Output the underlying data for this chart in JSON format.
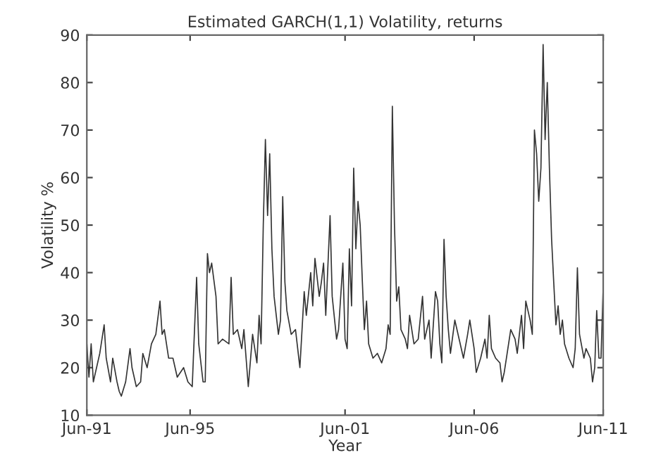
{
  "chart_data": {
    "type": "line",
    "title": "Estimated GARCH(1,1) Volatility, returns",
    "xlabel": "Year",
    "ylabel": "Volatility %",
    "xlim": [
      "1991-06",
      "2011-06"
    ],
    "ylim": [
      10,
      90
    ],
    "xticks": [
      {
        "value": "1991-06",
        "label": "Jun-91"
      },
      {
        "value": "1995-06",
        "label": "Jun-95"
      },
      {
        "value": "2001-06",
        "label": "Jun-01"
      },
      {
        "value": "2006-06",
        "label": "Jun-06"
      },
      {
        "value": "2011-06",
        "label": "Jun-11"
      }
    ],
    "yticks": [
      10,
      20,
      30,
      40,
      50,
      60,
      70,
      80,
      90
    ],
    "grid": false,
    "legend": false,
    "marker": "none",
    "line_style": "solid",
    "series": [
      {
        "color": "#333333",
        "x": [
          "1991-06",
          "1991-07",
          "1991-08",
          "1991-09",
          "1991-12",
          "1992-01",
          "1992-02",
          "1992-03",
          "1992-05",
          "1992-06",
          "1992-08",
          "1992-09",
          "1992-10",
          "1992-12",
          "1993-02",
          "1993-03",
          "1993-05",
          "1993-07",
          "1993-08",
          "1993-10",
          "1993-12",
          "1994-02",
          "1994-04",
          "1994-05",
          "1994-06",
          "1994-08",
          "1994-10",
          "1994-12",
          "1995-03",
          "1995-05",
          "1995-07",
          "1995-09",
          "1995-10",
          "1995-12",
          "1996-01",
          "1996-02",
          "1996-03",
          "1996-04",
          "1996-06",
          "1996-07",
          "1996-09",
          "1996-12",
          "1997-01",
          "1997-02",
          "1997-04",
          "1997-06",
          "1997-07",
          "1997-09",
          "1997-11",
          "1998-01",
          "1998-02",
          "1998-03",
          "1998-04",
          "1998-05",
          "1998-06",
          "1998-07",
          "1998-08",
          "1998-09",
          "1998-11",
          "1998-12",
          "1999-01",
          "1999-02",
          "1999-03",
          "1999-05",
          "1999-07",
          "1999-09",
          "1999-11",
          "1999-12",
          "2000-02",
          "2000-03",
          "2000-04",
          "2000-06",
          "2000-07",
          "2000-08",
          "2000-09",
          "2000-11",
          "2000-12",
          "2001-02",
          "2001-03",
          "2001-05",
          "2001-06",
          "2001-07",
          "2001-08",
          "2001-09",
          "2001-10",
          "2001-11",
          "2001-12",
          "2002-01",
          "2002-02",
          "2002-03",
          "2002-04",
          "2002-05",
          "2002-07",
          "2002-09",
          "2002-11",
          "2003-01",
          "2003-02",
          "2003-03",
          "2003-04",
          "2003-05",
          "2003-06",
          "2003-07",
          "2003-08",
          "2003-10",
          "2003-11",
          "2003-12",
          "2004-02",
          "2004-04",
          "2004-06",
          "2004-07",
          "2004-09",
          "2004-10",
          "2004-12",
          "2005-01",
          "2005-02",
          "2005-03",
          "2005-04",
          "2005-05",
          "2005-06",
          "2005-07",
          "2005-09",
          "2005-11",
          "2006-01",
          "2006-03",
          "2006-04",
          "2006-06",
          "2006-07",
          "2006-09",
          "2006-11",
          "2006-12",
          "2007-01",
          "2007-02",
          "2007-04",
          "2007-06",
          "2007-07",
          "2007-08",
          "2007-09",
          "2007-11",
          "2008-01",
          "2008-02",
          "2008-04",
          "2008-05",
          "2008-06",
          "2008-08",
          "2008-09",
          "2008-10",
          "2008-11",
          "2008-12",
          "2009-01",
          "2009-02",
          "2009-03",
          "2009-04",
          "2009-05",
          "2009-06",
          "2009-07",
          "2009-08",
          "2009-09",
          "2009-10",
          "2009-11",
          "2009-12",
          "2010-02",
          "2010-04",
          "2010-05",
          "2010-06",
          "2010-07",
          "2010-09",
          "2010-10",
          "2010-12",
          "2011-01",
          "2011-02",
          "2011-03",
          "2011-04",
          "2011-05",
          "2011-06"
        ],
        "values": [
          25,
          18,
          25,
          17,
          23,
          26,
          29,
          22,
          17,
          22,
          17,
          15,
          14,
          17,
          24,
          20,
          16,
          17,
          23,
          20,
          25,
          27,
          34,
          27,
          28,
          22,
          22,
          18,
          20,
          17,
          16,
          39,
          25,
          17,
          17,
          44,
          40,
          42,
          35,
          25,
          26,
          25,
          39,
          27,
          28,
          24,
          28,
          16,
          27,
          21,
          31,
          25,
          50,
          68,
          52,
          65,
          45,
          35,
          27,
          30,
          56,
          38,
          32,
          27,
          28,
          20,
          36,
          31,
          40,
          33,
          43,
          35,
          38,
          42,
          31,
          52,
          35,
          26,
          28,
          42,
          26,
          24,
          45,
          33,
          62,
          45,
          55,
          50,
          38,
          28,
          34,
          25,
          22,
          23,
          21,
          24,
          29,
          27,
          75,
          50,
          34,
          37,
          28,
          26,
          24,
          31,
          25,
          26,
          35,
          26,
          30,
          22,
          36,
          34,
          25,
          21,
          47,
          35,
          28,
          23,
          30,
          26,
          22,
          27,
          30,
          24,
          19,
          22,
          26,
          22,
          31,
          24,
          22,
          21,
          17,
          19,
          22,
          28,
          26,
          23,
          31,
          24,
          34,
          30,
          27,
          70,
          65,
          55,
          62,
          88,
          68,
          80,
          62,
          47,
          38,
          29,
          33,
          27,
          30,
          25,
          22,
          20,
          24,
          41,
          27,
          22,
          24,
          22,
          17,
          20,
          32,
          22,
          22,
          37
        ]
      }
    ]
  }
}
